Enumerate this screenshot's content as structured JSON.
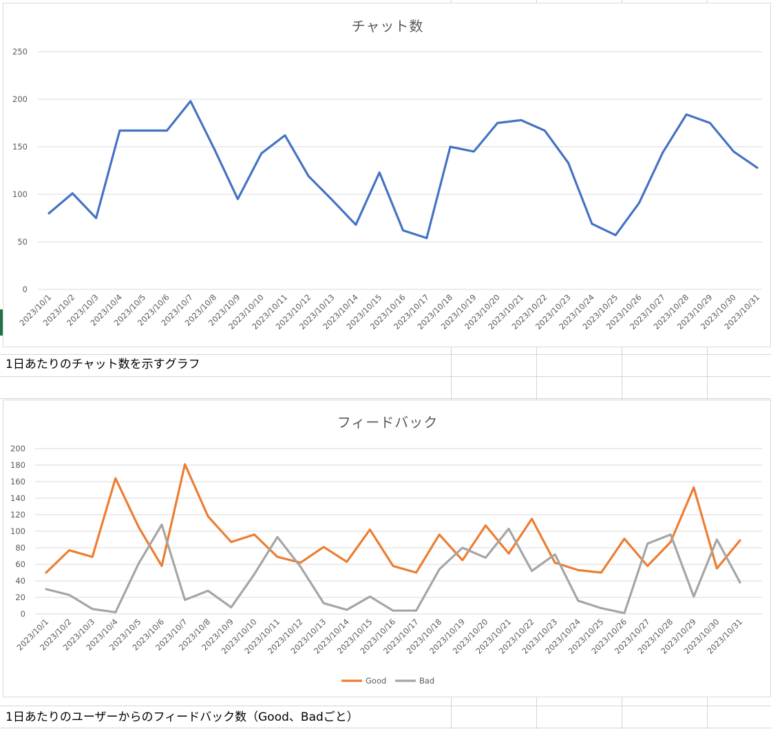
{
  "sheet": {
    "caption_chat": "1日あたりのチャット数を示すグラフ",
    "caption_feedback": "1日あたりのユーザーからのフィードバック数（Good、Badごと）"
  },
  "chart_data": [
    {
      "type": "line",
      "title": "チャット数",
      "xlabel": "",
      "ylabel": "",
      "ylim": [
        0,
        250
      ],
      "yticks": [
        0,
        50,
        100,
        150,
        200,
        250
      ],
      "grid": true,
      "categories": [
        "2023/10/1",
        "2023/10/2",
        "2023/10/3",
        "2023/10/4",
        "2023/10/5",
        "2023/10/6",
        "2023/10/7",
        "2023/10/8",
        "2023/10/9",
        "2023/10/10",
        "2023/10/11",
        "2023/10/12",
        "2023/10/13",
        "2023/10/14",
        "2023/10/15",
        "2023/10/16",
        "2023/10/17",
        "2023/10/18",
        "2023/10/19",
        "2023/10/20",
        "2023/10/21",
        "2023/10/22",
        "2023/10/23",
        "2023/10/24",
        "2023/10/25",
        "2023/10/26",
        "2023/10/27",
        "2023/10/28",
        "2023/10/29",
        "2023/10/30",
        "2023/10/31"
      ],
      "series": [
        {
          "color": "#4472c4",
          "values": [
            80,
            101,
            75,
            167,
            167,
            167,
            198,
            148,
            95,
            143,
            162,
            119,
            94,
            68,
            123,
            62,
            54,
            150,
            145,
            175,
            178,
            167,
            133,
            69,
            57,
            91,
            144,
            184,
            175,
            145,
            128
          ]
        }
      ]
    },
    {
      "type": "line",
      "title": "フィードバック",
      "xlabel": "",
      "ylabel": "",
      "ylim": [
        0,
        200
      ],
      "yticks": [
        0,
        20,
        40,
        60,
        80,
        100,
        120,
        140,
        160,
        180,
        200
      ],
      "grid": true,
      "legend_position": "bottom",
      "categories": [
        "2023/10/1",
        "2023/10/2",
        "2023/10/3",
        "2023/10/4",
        "2023/10/5",
        "2023/10/6",
        "2023/10/7",
        "2023/10/8",
        "2023/10/9",
        "2023/10/10",
        "2023/10/11",
        "2023/10/12",
        "2023/10/13",
        "2023/10/14",
        "2023/10/15",
        "2023/10/16",
        "2023/10/17",
        "2023/10/18",
        "2023/10/19",
        "2023/10/20",
        "2023/10/21",
        "2023/10/22",
        "2023/10/23",
        "2023/10/24",
        "2023/10/25",
        "2023/10/26",
        "2023/10/27",
        "2023/10/28",
        "2023/10/29",
        "2023/10/30",
        "2023/10/31"
      ],
      "series": [
        {
          "name": "Good",
          "color": "#ed7d31",
          "values": [
            50,
            77,
            69,
            164,
            105,
            58,
            181,
            118,
            87,
            96,
            69,
            62,
            81,
            63,
            102,
            58,
            50,
            96,
            65,
            107,
            73,
            115,
            62,
            53,
            50,
            91,
            58,
            87,
            153,
            55,
            89
          ]
        },
        {
          "name": "Bad",
          "color": "#a5a5a5",
          "values": [
            30,
            23,
            6,
            2,
            61,
            108,
            17,
            28,
            8,
            48,
            93,
            57,
            13,
            5,
            21,
            4,
            4,
            54,
            80,
            68,
            103,
            52,
            72,
            16,
            7,
            1,
            85,
            96,
            21,
            90,
            38
          ]
        }
      ]
    }
  ]
}
